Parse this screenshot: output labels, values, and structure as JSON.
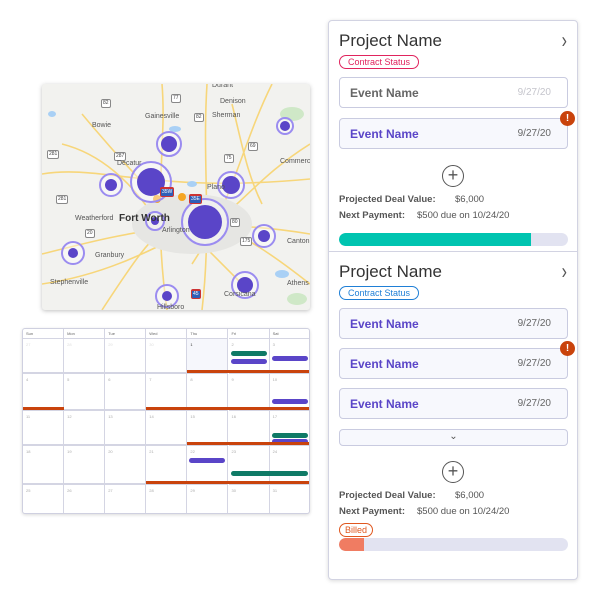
{
  "map": {
    "cities": [
      "Durant",
      "Denison",
      "Gainesville",
      "Sherman",
      "Bowie",
      "Decatur",
      "Commerce",
      "Plano",
      "Fort Worth",
      "Weatherford",
      "Arlington",
      "Canton",
      "Granbury",
      "Stephenville",
      "Athens",
      "Corsicana",
      "Hillsboro"
    ],
    "highways": [
      "77",
      "82",
      "82",
      "69",
      "287",
      "281",
      "75",
      "281",
      "20",
      "175",
      "80",
      "35W",
      "35E",
      "45"
    ],
    "cluster_color": "#5a45c8",
    "ring_color": "#9b8cf0",
    "pin_color": "#f5a623"
  },
  "calendar": {
    "days": [
      "Sun",
      "Mon",
      "Tue",
      "Wed",
      "Thu",
      "Fri",
      "Sat"
    ],
    "weeks": [
      [
        "27",
        "28",
        "29",
        "30",
        "1",
        "2",
        "3"
      ],
      [
        "4",
        "5",
        "6",
        "7",
        "8",
        "9",
        "10"
      ],
      [
        "11",
        "12",
        "13",
        "14",
        "15",
        "16",
        "17"
      ],
      [
        "18",
        "19",
        "20",
        "21",
        "22",
        "23",
        "24"
      ],
      [
        "25",
        "26",
        "27",
        "28",
        "29",
        "30",
        "31"
      ]
    ],
    "today": "1",
    "colors": {
      "green": "#0f7a66",
      "purple": "#5a45c8",
      "orange": "#c9430c"
    },
    "events": [
      {
        "week": 0,
        "start": 5,
        "span": 1,
        "color": "green",
        "slot": 0
      },
      {
        "week": 0,
        "start": 5,
        "span": 1,
        "color": "purple",
        "slot": 1
      },
      {
        "week": 0,
        "start": 6,
        "span": 1,
        "color": "purple",
        "slot": 0.6
      },
      {
        "week": 0,
        "start": 4,
        "span": 3,
        "color": "orange",
        "slot": "line"
      },
      {
        "week": 1,
        "start": 0,
        "span": 1,
        "color": "orange",
        "slot": "line"
      },
      {
        "week": 1,
        "start": 3,
        "span": 4,
        "color": "orange",
        "slot": "line"
      },
      {
        "week": 1,
        "start": 6,
        "span": 1,
        "color": "purple",
        "slot": 1.6
      },
      {
        "week": 2,
        "start": 6,
        "span": 1,
        "color": "green",
        "slot": 1.2
      },
      {
        "week": 2,
        "start": 6,
        "span": 1,
        "color": "purple",
        "slot": 2
      },
      {
        "week": 2,
        "start": 4,
        "span": 3,
        "color": "orange",
        "slot": "line"
      },
      {
        "week": 3,
        "start": 4,
        "span": 1,
        "color": "purple",
        "slot": 0
      },
      {
        "week": 3,
        "start": 5,
        "span": 2,
        "color": "green",
        "slot": 1.6
      },
      {
        "week": 3,
        "start": 3,
        "span": 4,
        "color": "orange",
        "slot": "line"
      }
    ]
  },
  "projects": [
    {
      "title": "Project Name",
      "status": "Contract Status",
      "status_color": "#e0245e",
      "events": [
        {
          "name": "Event Name",
          "date": "9/27/20",
          "style": "white",
          "alert": false
        },
        {
          "name": "Event Name",
          "date": "9/27/20",
          "style": "filled",
          "alert": true
        }
      ],
      "deal_label": "Projected Deal Value:",
      "deal_value": "$6,000",
      "payment_label": "Next Payment:",
      "payment_value": "$500 due on 10/24/20",
      "progress": 0.84,
      "progress_color": "#00c4b0"
    },
    {
      "title": "Project Name",
      "status": "Contract Status",
      "status_color": "#1f7fd6",
      "events": [
        {
          "name": "Event Name",
          "date": "9/27/20",
          "style": "filled",
          "alert": false
        },
        {
          "name": "Event Name",
          "date": "9/27/20",
          "style": "filled",
          "alert": true
        },
        {
          "name": "Event Name",
          "date": "9/27/20",
          "style": "filled",
          "alert": false
        }
      ],
      "deal_label": "Projected Deal Value:",
      "deal_value": "$6,000",
      "payment_label": "Next Payment:",
      "payment_value": "$500 due on 10/24/20",
      "billing": "Billed",
      "billing_color": "#e0571f",
      "progress": 0.11,
      "progress_color": "#f07c62"
    }
  ],
  "icons": {
    "chevron": "chevron-right-icon",
    "expand": "chevron-down-icon",
    "add": "plus-circle-icon",
    "alert": "exclamation-icon"
  }
}
